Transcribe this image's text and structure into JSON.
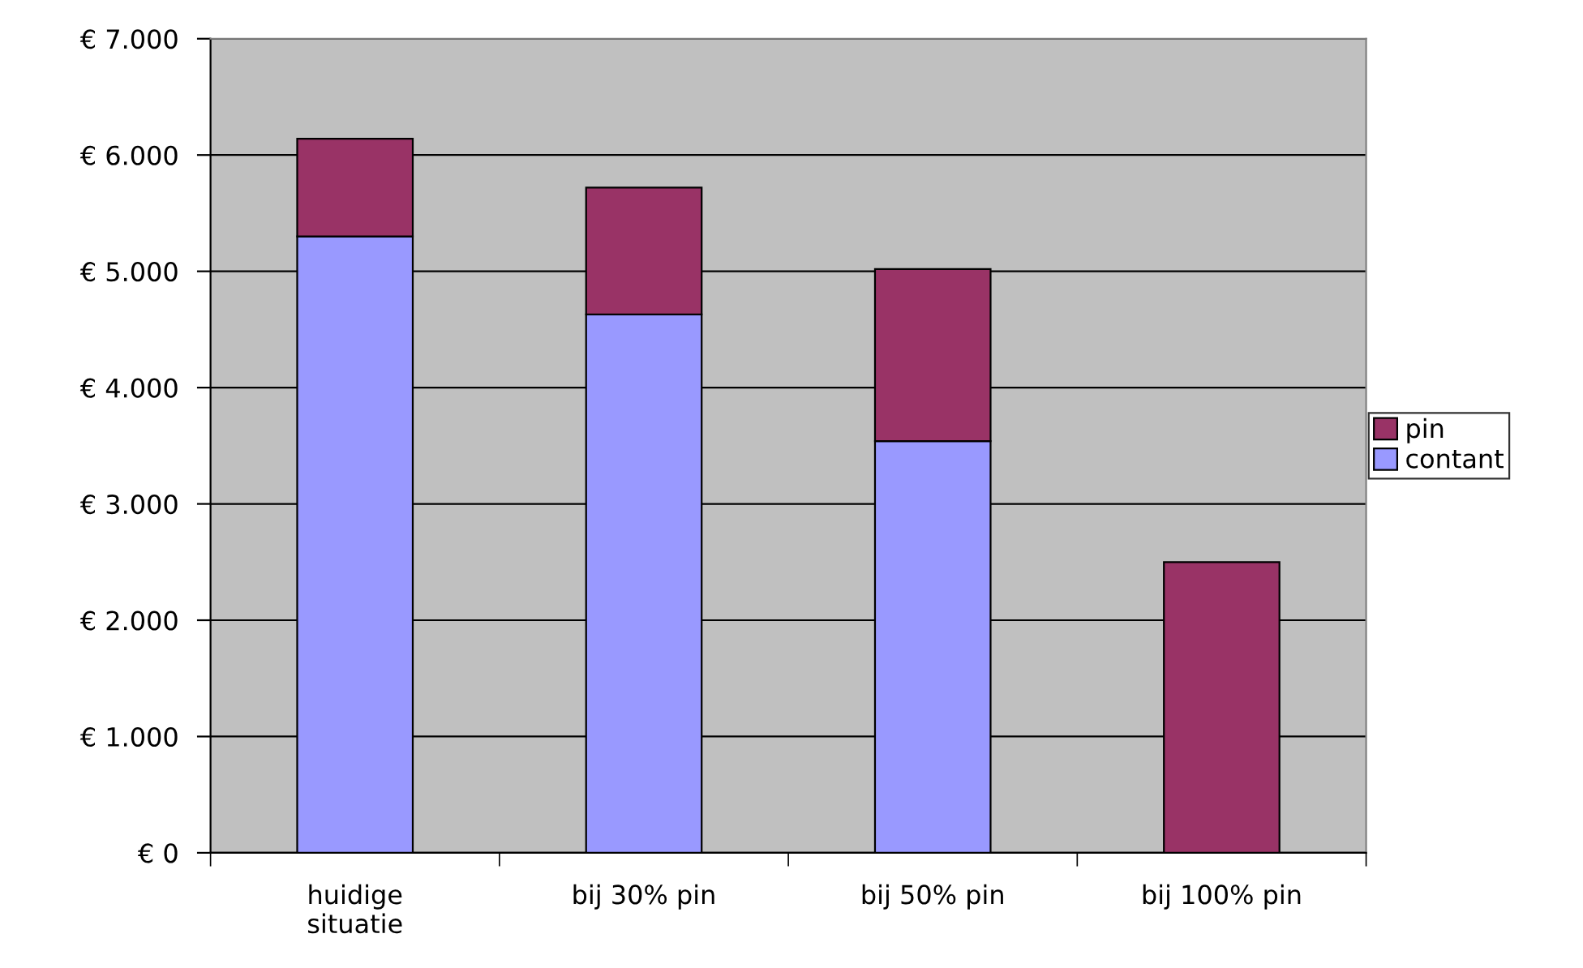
{
  "chart_data": {
    "type": "bar",
    "stacked": true,
    "categories": [
      "huidige\nsituatie",
      "bij 30% pin",
      "bij 50% pin",
      "bij 100% pin"
    ],
    "series": [
      {
        "name": "contant",
        "color": "#9999ff",
        "values": [
          5300,
          4630,
          3540,
          0
        ]
      },
      {
        "name": "pin",
        "color": "#993366",
        "values": [
          840,
          1090,
          1480,
          2500
        ]
      }
    ],
    "ylim": [
      0,
      7000
    ],
    "yticks": [
      {
        "value": 0,
        "label": "€ 0"
      },
      {
        "value": 1000,
        "label": "€ 1.000"
      },
      {
        "value": 2000,
        "label": "€ 2.000"
      },
      {
        "value": 3000,
        "label": "€ 3.000"
      },
      {
        "value": 4000,
        "label": "€ 4.000"
      },
      {
        "value": 5000,
        "label": "€ 5.000"
      },
      {
        "value": 6000,
        "label": "€ 6.000"
      },
      {
        "value": 7000,
        "label": "€ 7.000"
      }
    ],
    "grid": "y",
    "legend": "right"
  }
}
